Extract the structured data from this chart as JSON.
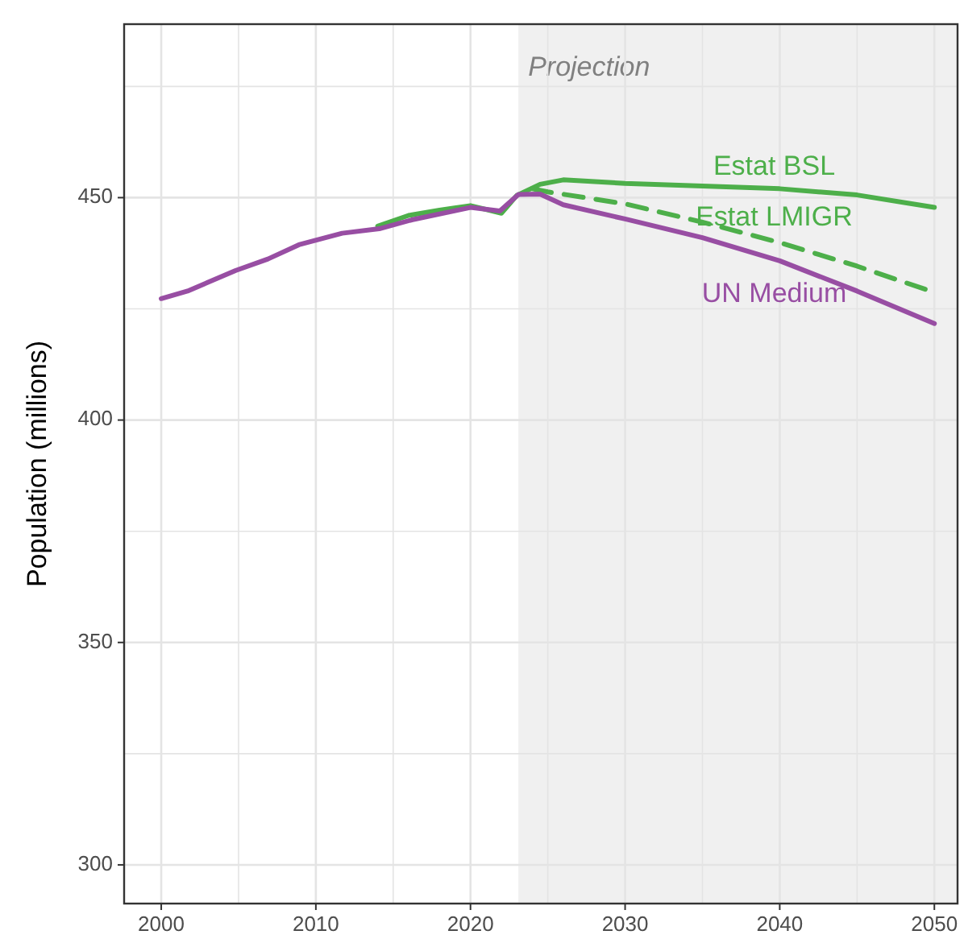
{
  "chart_data": {
    "type": "line",
    "ylabel": "Population (millions)",
    "xlim": [
      1997.6,
      2051.5
    ],
    "ylim": [
      291.3,
      489
    ],
    "xticks": [
      2000,
      {
        "value": 2005,
        "label": null
      },
      2010,
      {
        "value": 2015,
        "label": null
      },
      2020,
      {
        "value": 2025,
        "label": null
      },
      2030,
      {
        "value": 2035,
        "label": null
      },
      2040,
      {
        "value": 2045,
        "label": null
      },
      2050
    ],
    "yticks": [
      300,
      {
        "value": 325,
        "label": null
      },
      350,
      {
        "value": 375,
        "label": null
      },
      400,
      {
        "value": 425,
        "label": null
      },
      450,
      {
        "value": 475,
        "label": null
      }
    ],
    "grid": true,
    "legend": false,
    "bands": [
      {
        "axis": "x",
        "from": 2023.1,
        "to": 2051.5,
        "label": "Projection",
        "color": "#f0f0f0"
      }
    ],
    "series": [
      {
        "name": "Estat BSL",
        "color": "#4daf4a",
        "line_style": "solid",
        "x": [
          2014,
          2016,
          2018,
          2020,
          2022,
          2023,
          2024.5,
          2026,
          2030,
          2035,
          2040,
          2045,
          2050
        ],
        "values": [
          443.6,
          446,
          447.2,
          448.2,
          446.5,
          450.5,
          453,
          454,
          453.2,
          452.6,
          452,
          450.6,
          447.8
        ]
      },
      {
        "name": "Estat LMIGR",
        "color": "#4daf4a",
        "line_style": "dashed",
        "x": [
          2024,
          2025,
          2030,
          2035,
          2040,
          2045,
          2050
        ],
        "values": [
          452,
          451.3,
          448.6,
          444.5,
          439.9,
          434.6,
          428.7
        ]
      },
      {
        "name": "UN Medium",
        "color": "#984ea3",
        "line_style": "solid",
        "x": [
          2000,
          2001.7,
          2004.8,
          2006.9,
          2008.9,
          2011.7,
          2014.1,
          2016.2,
          2020,
          2021.9,
          2023.1,
          2024.5,
          2026,
          2030,
          2035,
          2040,
          2045,
          2050
        ],
        "values": [
          427.3,
          429,
          433.6,
          436.2,
          439.4,
          442,
          443,
          445,
          447.8,
          447,
          450.7,
          450.8,
          448.4,
          445.2,
          441,
          435.8,
          429,
          421.7
        ]
      }
    ]
  }
}
